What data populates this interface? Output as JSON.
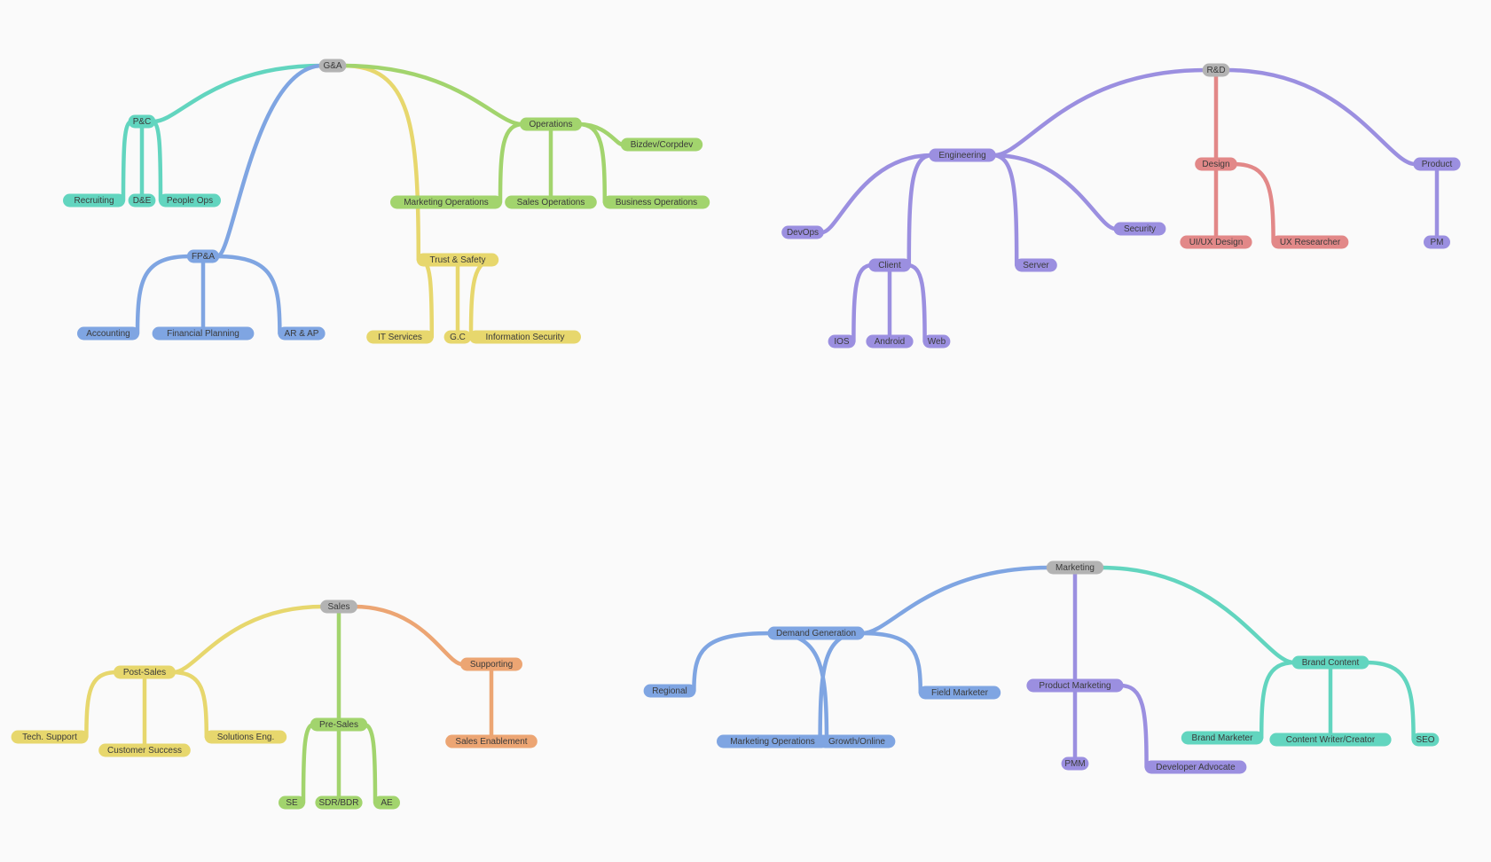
{
  "colors": {
    "root": "#b3b3b3",
    "teal": "#62d5bf",
    "blue": "#7fa5e2",
    "green": "#a2d46d",
    "yellow": "#e7d76d",
    "purple": "#9b8fe0",
    "red": "#e28888",
    "orange": "#eca573"
  },
  "mindmap": [
    {
      "label": "G&A",
      "children": [
        {
          "label": "P&C",
          "color": "teal",
          "children": [
            {
              "label": "Recruiting"
            },
            {
              "label": "D&E"
            },
            {
              "label": "People Ops"
            }
          ]
        },
        {
          "label": "FP&A",
          "color": "blue",
          "children": [
            {
              "label": "Accounting"
            },
            {
              "label": "Financial Planning"
            },
            {
              "label": "AR & AP"
            }
          ]
        },
        {
          "label": "Trust & Safety",
          "color": "yellow",
          "children": [
            {
              "label": "IT Services"
            },
            {
              "label": "G.C"
            },
            {
              "label": "Information Security"
            }
          ]
        },
        {
          "label": "Operations",
          "color": "green",
          "children": [
            {
              "label": "Bizdev/Corpdev"
            },
            {
              "label": "Marketing Operations"
            },
            {
              "label": "Sales Operations"
            },
            {
              "label": "Business Operations"
            }
          ]
        }
      ]
    },
    {
      "label": "R&D",
      "children": [
        {
          "label": "Engineering",
          "color": "purple",
          "children": [
            {
              "label": "DevOps"
            },
            {
              "label": "Client",
              "children": [
                {
                  "label": "IOS"
                },
                {
                  "label": "Android"
                },
                {
                  "label": "Web"
                }
              ]
            },
            {
              "label": "Server"
            },
            {
              "label": "Security"
            }
          ]
        },
        {
          "label": "Design",
          "color": "red",
          "children": [
            {
              "label": "UI/UX Design"
            },
            {
              "label": "UX Researcher"
            }
          ]
        },
        {
          "label": "Product",
          "color": "purple",
          "children": [
            {
              "label": "PM"
            }
          ]
        }
      ]
    },
    {
      "label": "Sales",
      "children": [
        {
          "label": "Post-Sales",
          "color": "yellow",
          "children": [
            {
              "label": "Tech. Support"
            },
            {
              "label": "Customer Success"
            },
            {
              "label": "Solutions Eng."
            }
          ]
        },
        {
          "label": "Pre-Sales",
          "color": "green",
          "children": [
            {
              "label": "SE"
            },
            {
              "label": "SDR/BDR"
            },
            {
              "label": "AE"
            }
          ]
        },
        {
          "label": "Supporting",
          "color": "orange",
          "children": [
            {
              "label": "Sales Enablement"
            }
          ]
        }
      ]
    },
    {
      "label": "Marketing",
      "children": [
        {
          "label": "Demand Generation",
          "color": "blue",
          "children": [
            {
              "label": "Regional"
            },
            {
              "label": "Marketing Operations"
            },
            {
              "label": "Growth/Online"
            },
            {
              "label": "Field Marketer"
            }
          ]
        },
        {
          "label": "Product Marketing",
          "color": "purple",
          "children": [
            {
              "label": "PMM"
            },
            {
              "label": "Developer Advocate"
            }
          ]
        },
        {
          "label": "Brand Content",
          "color": "teal",
          "children": [
            {
              "label": "Brand Marketer"
            },
            {
              "label": "Content Writer/Creator"
            },
            {
              "label": "SEO"
            }
          ]
        }
      ]
    }
  ]
}
